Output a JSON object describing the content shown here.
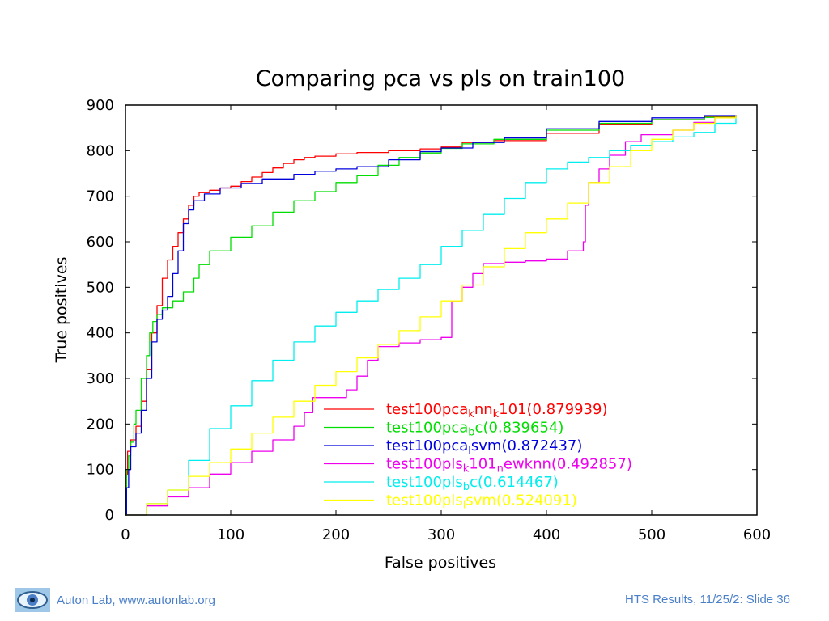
{
  "footer": {
    "left_text": "Auton Lab, www.autonlab.org",
    "right_text": "HTS Results, 11/25/2: Slide 36",
    "logo_icon": "eye-logo-icon",
    "text_color": "#4a7fc8"
  },
  "chart_data": {
    "type": "line",
    "title": "Comparing pca vs pls on train100",
    "xlabel": "False positives",
    "ylabel": "True positives",
    "xlim": [
      0,
      600
    ],
    "ylim": [
      0,
      900
    ],
    "xticks": [
      "0",
      "100",
      "200",
      "300",
      "400",
      "500",
      "600"
    ],
    "yticks": [
      "0",
      "100",
      "200",
      "300",
      "400",
      "500",
      "600",
      "700",
      "800",
      "900"
    ],
    "grid": false,
    "legend_position": "bottom-right",
    "series": [
      {
        "name": "test100pca_knn_k101(0.879939)",
        "legend_parts": [
          [
            "test100pca",
            false
          ],
          [
            "k",
            true
          ],
          [
            "nn",
            false
          ],
          [
            "k",
            true
          ],
          [
            "101(0.879939)",
            false
          ]
        ],
        "color": "#ff0000",
        "points": [
          [
            0,
            0
          ],
          [
            1,
            90
          ],
          [
            2,
            140
          ],
          [
            5,
            165
          ],
          [
            10,
            195
          ],
          [
            15,
            250
          ],
          [
            20,
            320
          ],
          [
            25,
            400
          ],
          [
            30,
            460
          ],
          [
            35,
            520
          ],
          [
            40,
            560
          ],
          [
            45,
            590
          ],
          [
            50,
            620
          ],
          [
            55,
            650
          ],
          [
            60,
            680
          ],
          [
            65,
            700
          ],
          [
            70,
            708
          ],
          [
            80,
            713
          ],
          [
            90,
            718
          ],
          [
            100,
            722
          ],
          [
            110,
            732
          ],
          [
            120,
            742
          ],
          [
            130,
            752
          ],
          [
            140,
            762
          ],
          [
            150,
            772
          ],
          [
            160,
            780
          ],
          [
            170,
            785
          ],
          [
            180,
            788
          ],
          [
            200,
            793
          ],
          [
            220,
            796
          ],
          [
            250,
            800
          ],
          [
            280,
            804
          ],
          [
            300,
            808
          ],
          [
            320,
            818
          ],
          [
            350,
            822
          ],
          [
            400,
            838
          ],
          [
            450,
            858
          ],
          [
            500,
            868
          ],
          [
            550,
            874
          ],
          [
            580,
            878
          ]
        ]
      },
      {
        "name": "test100pca_bc(0.839654)",
        "legend_parts": [
          [
            "test100pca",
            false
          ],
          [
            "b",
            true
          ],
          [
            "c(0.839654)",
            false
          ]
        ],
        "color": "#00dd00",
        "points": [
          [
            0,
            0
          ],
          [
            1,
            100
          ],
          [
            3,
            130
          ],
          [
            5,
            160
          ],
          [
            8,
            200
          ],
          [
            10,
            230
          ],
          [
            15,
            300
          ],
          [
            20,
            350
          ],
          [
            23,
            400
          ],
          [
            26,
            425
          ],
          [
            30,
            440
          ],
          [
            35,
            455
          ],
          [
            45,
            470
          ],
          [
            55,
            490
          ],
          [
            65,
            520
          ],
          [
            70,
            550
          ],
          [
            80,
            580
          ],
          [
            100,
            610
          ],
          [
            120,
            635
          ],
          [
            140,
            665
          ],
          [
            160,
            690
          ],
          [
            180,
            710
          ],
          [
            200,
            730
          ],
          [
            220,
            745
          ],
          [
            240,
            768
          ],
          [
            260,
            785
          ],
          [
            280,
            795
          ],
          [
            300,
            805
          ],
          [
            320,
            815
          ],
          [
            350,
            825
          ],
          [
            400,
            845
          ],
          [
            450,
            860
          ],
          [
            500,
            868
          ],
          [
            550,
            873
          ],
          [
            580,
            878
          ]
        ]
      },
      {
        "name": "test100pca_lsvm(0.872437)",
        "legend_parts": [
          [
            "test100pca",
            false
          ],
          [
            "l",
            true
          ],
          [
            "svm(0.872437)",
            false
          ]
        ],
        "color": "#0000dd",
        "points": [
          [
            0,
            0
          ],
          [
            1,
            60
          ],
          [
            3,
            100
          ],
          [
            5,
            150
          ],
          [
            10,
            180
          ],
          [
            15,
            230
          ],
          [
            20,
            300
          ],
          [
            25,
            380
          ],
          [
            30,
            430
          ],
          [
            35,
            450
          ],
          [
            40,
            480
          ],
          [
            45,
            530
          ],
          [
            50,
            580
          ],
          [
            55,
            640
          ],
          [
            60,
            670
          ],
          [
            65,
            690
          ],
          [
            75,
            705
          ],
          [
            90,
            718
          ],
          [
            110,
            728
          ],
          [
            130,
            738
          ],
          [
            160,
            748
          ],
          [
            180,
            755
          ],
          [
            200,
            760
          ],
          [
            220,
            765
          ],
          [
            250,
            780
          ],
          [
            280,
            798
          ],
          [
            300,
            806
          ],
          [
            330,
            818
          ],
          [
            360,
            828
          ],
          [
            400,
            848
          ],
          [
            450,
            864
          ],
          [
            500,
            872
          ],
          [
            550,
            877
          ],
          [
            580,
            878
          ]
        ]
      },
      {
        "name": "test100pls_k101_newknn(0.492857)",
        "legend_parts": [
          [
            "test100pls",
            false
          ],
          [
            "k",
            true
          ],
          [
            "101",
            false
          ],
          [
            "n",
            true
          ],
          [
            "ewknn(0.492857)",
            false
          ]
        ],
        "color": "#ee00ee",
        "points": [
          [
            0,
            0
          ],
          [
            20,
            20
          ],
          [
            40,
            40
          ],
          [
            60,
            60
          ],
          [
            80,
            90
          ],
          [
            100,
            115
          ],
          [
            120,
            140
          ],
          [
            140,
            165
          ],
          [
            160,
            195
          ],
          [
            170,
            225
          ],
          [
            178,
            258
          ],
          [
            200,
            258
          ],
          [
            210,
            275
          ],
          [
            220,
            305
          ],
          [
            230,
            340
          ],
          [
            240,
            370
          ],
          [
            260,
            378
          ],
          [
            280,
            385
          ],
          [
            300,
            390
          ],
          [
            308,
            390
          ],
          [
            310,
            470
          ],
          [
            320,
            500
          ],
          [
            330,
            530
          ],
          [
            340,
            552
          ],
          [
            360,
            555
          ],
          [
            380,
            558
          ],
          [
            400,
            562
          ],
          [
            420,
            580
          ],
          [
            435,
            600
          ],
          [
            437,
            680
          ],
          [
            440,
            730
          ],
          [
            450,
            760
          ],
          [
            460,
            790
          ],
          [
            475,
            820
          ],
          [
            490,
            835
          ],
          [
            520,
            845
          ],
          [
            540,
            862
          ],
          [
            560,
            872
          ],
          [
            580,
            878
          ]
        ]
      },
      {
        "name": "test100pls_bc(0.614467)",
        "legend_parts": [
          [
            "test100pls",
            false
          ],
          [
            "b",
            true
          ],
          [
            "c(0.614467)",
            false
          ]
        ],
        "color": "#00eeee",
        "points": [
          [
            0,
            0
          ],
          [
            20,
            25
          ],
          [
            40,
            55
          ],
          [
            60,
            120
          ],
          [
            80,
            190
          ],
          [
            100,
            240
          ],
          [
            120,
            295
          ],
          [
            140,
            340
          ],
          [
            160,
            380
          ],
          [
            180,
            415
          ],
          [
            200,
            445
          ],
          [
            220,
            470
          ],
          [
            240,
            495
          ],
          [
            260,
            520
          ],
          [
            280,
            550
          ],
          [
            300,
            590
          ],
          [
            320,
            625
          ],
          [
            340,
            660
          ],
          [
            360,
            695
          ],
          [
            380,
            730
          ],
          [
            400,
            760
          ],
          [
            420,
            775
          ],
          [
            440,
            785
          ],
          [
            460,
            800
          ],
          [
            480,
            812
          ],
          [
            500,
            820
          ],
          [
            520,
            830
          ],
          [
            540,
            840
          ],
          [
            560,
            860
          ],
          [
            580,
            878
          ]
        ]
      },
      {
        "name": "test100pls_lsvm(0.524091)",
        "legend_parts": [
          [
            "test100pls",
            false
          ],
          [
            "l",
            true
          ],
          [
            "svm(0.524091)",
            false
          ]
        ],
        "color": "#ffff00",
        "points": [
          [
            0,
            0
          ],
          [
            20,
            25
          ],
          [
            40,
            55
          ],
          [
            60,
            85
          ],
          [
            80,
            115
          ],
          [
            100,
            145
          ],
          [
            120,
            180
          ],
          [
            140,
            215
          ],
          [
            160,
            250
          ],
          [
            180,
            285
          ],
          [
            200,
            315
          ],
          [
            220,
            345
          ],
          [
            240,
            375
          ],
          [
            260,
            405
          ],
          [
            280,
            435
          ],
          [
            300,
            470
          ],
          [
            320,
            505
          ],
          [
            340,
            545
          ],
          [
            360,
            585
          ],
          [
            380,
            620
          ],
          [
            400,
            650
          ],
          [
            420,
            685
          ],
          [
            440,
            730
          ],
          [
            460,
            765
          ],
          [
            480,
            800
          ],
          [
            500,
            825
          ],
          [
            520,
            845
          ],
          [
            540,
            860
          ],
          [
            560,
            872
          ],
          [
            580,
            878
          ]
        ]
      }
    ]
  }
}
